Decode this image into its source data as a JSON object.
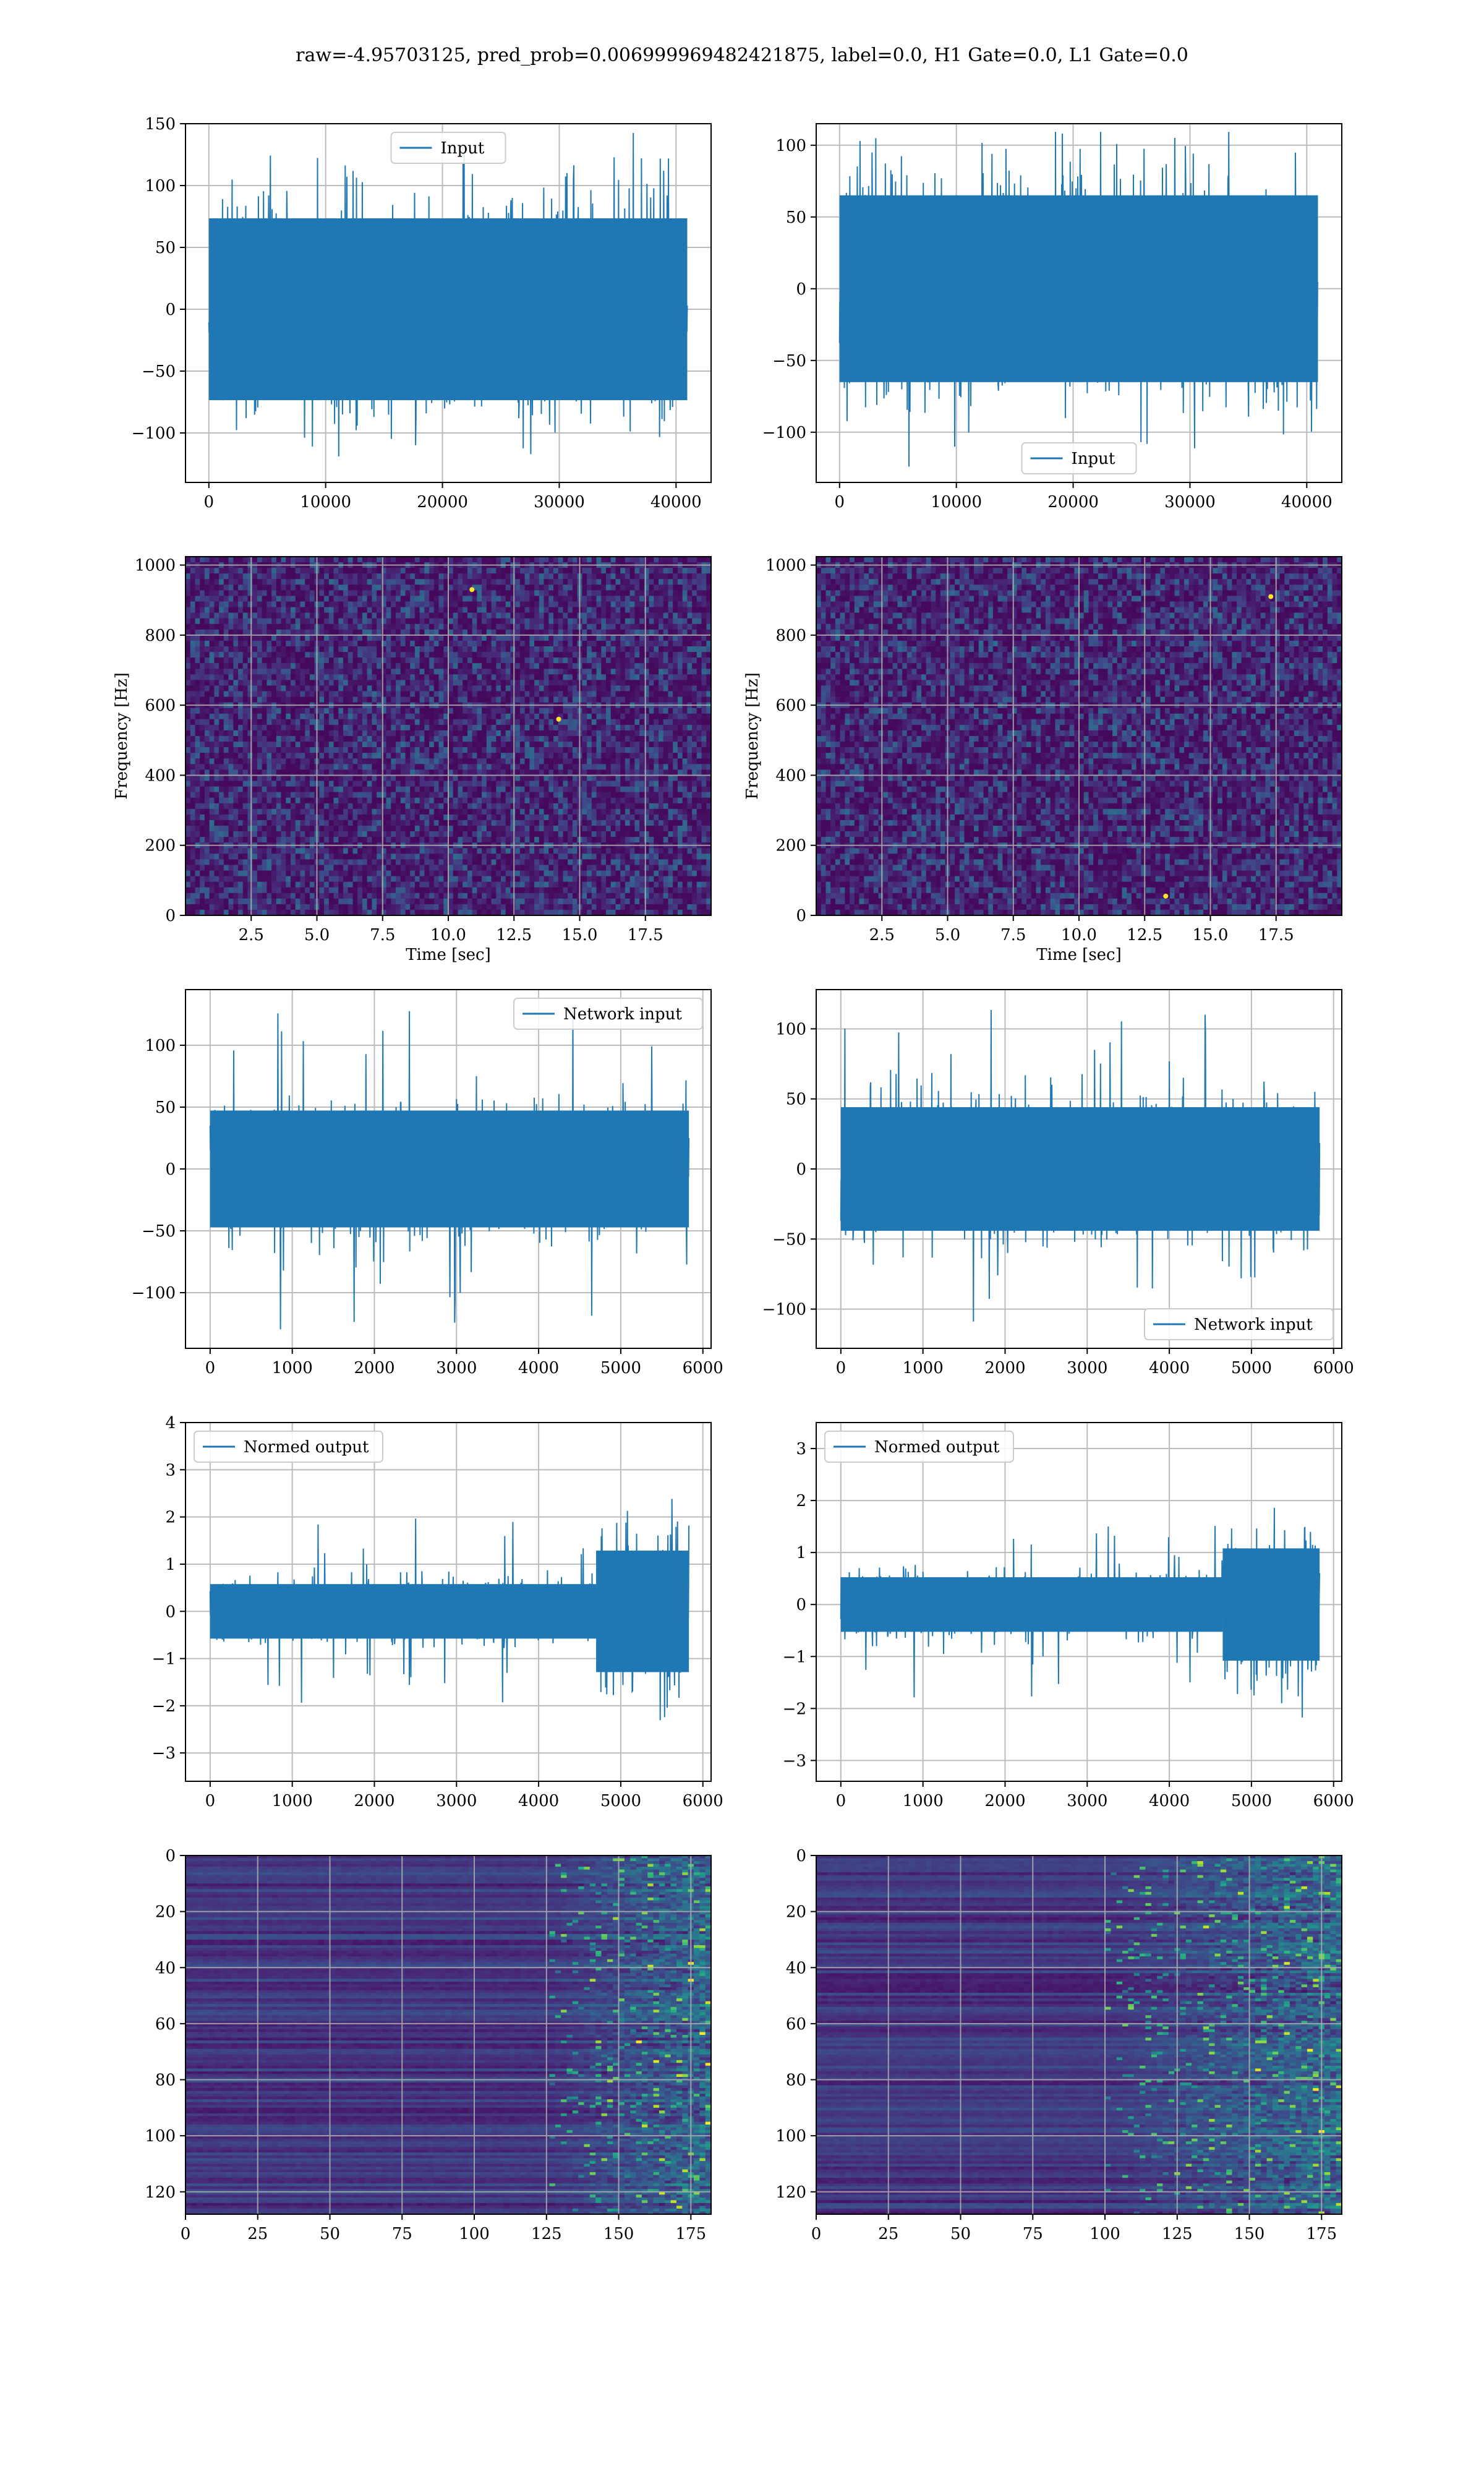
{
  "title": "raw=-4.95703125, pred_prob=0.006999969482421875, label=0.0, H1 Gate=0.0, L1 Gate=0.0",
  "colors": {
    "series": "#1f77b4",
    "grid": "#b0b0b0",
    "viridis": [
      "#440154",
      "#482878",
      "#3e4989",
      "#31688e",
      "#26828e",
      "#1f9e89",
      "#35b779",
      "#6ece58",
      "#b5de2b",
      "#fde725"
    ]
  },
  "chart_data": [
    {
      "id": "input-h1",
      "type": "line",
      "row": 0,
      "col": 0,
      "legend": "Input",
      "legend_loc": "upper center",
      "xlim": [
        -2000,
        43000
      ],
      "ylim": [
        -140,
        150
      ],
      "xticks": [
        0,
        10000,
        20000,
        30000,
        40000
      ],
      "yticks": [
        -100,
        -50,
        0,
        50,
        100,
        150
      ],
      "x_max": 40960,
      "envelope": 70,
      "peak": 125,
      "n_points": 1400,
      "seed": 11
    },
    {
      "id": "input-l1",
      "type": "line",
      "row": 0,
      "col": 1,
      "legend": "Input",
      "legend_loc": "lower center",
      "xlim": [
        -2000,
        43000
      ],
      "ylim": [
        -135,
        115
      ],
      "xticks": [
        0,
        10000,
        20000,
        30000,
        40000
      ],
      "yticks": [
        -100,
        -50,
        0,
        50,
        100
      ],
      "x_max": 40960,
      "envelope": 62,
      "peak": 115,
      "n_points": 1400,
      "seed": 23
    },
    {
      "id": "spectrogram-h1",
      "type": "heatmap",
      "row": 1,
      "col": 0,
      "xlabel": "Time [sec]",
      "ylabel": "Frequency [Hz]",
      "xlim": [
        0,
        20
      ],
      "ylim": [
        0,
        1024
      ],
      "xticks": [
        2.5,
        5.0,
        7.5,
        10.0,
        12.5,
        15.0,
        17.5
      ],
      "xtick_labels": [
        "2.5",
        "5.0",
        "7.5",
        "10.0",
        "12.5",
        "15.0",
        "17.5"
      ],
      "yticks": [
        0,
        200,
        400,
        600,
        800,
        1000
      ],
      "hot_spots": [
        [
          10.9,
          930
        ],
        [
          14.2,
          560
        ]
      ],
      "seed": 5
    },
    {
      "id": "spectrogram-l1",
      "type": "heatmap",
      "row": 1,
      "col": 1,
      "xlabel": "Time [sec]",
      "ylabel": "Frequency [Hz]",
      "xlim": [
        0,
        20
      ],
      "ylim": [
        0,
        1024
      ],
      "xticks": [
        2.5,
        5.0,
        7.5,
        10.0,
        12.5,
        15.0,
        17.5
      ],
      "xtick_labels": [
        "2.5",
        "5.0",
        "7.5",
        "10.0",
        "12.5",
        "15.0",
        "17.5"
      ],
      "yticks": [
        0,
        200,
        400,
        600,
        800,
        1000
      ],
      "hot_spots": [
        [
          17.3,
          910
        ],
        [
          13.3,
          55
        ]
      ],
      "seed": 9
    },
    {
      "id": "network-input-h1",
      "type": "line",
      "row": 2,
      "col": 0,
      "legend": "Network input",
      "legend_loc": "upper right",
      "xlim": [
        -300,
        6100
      ],
      "ylim": [
        -145,
        145
      ],
      "xticks": [
        0,
        1000,
        2000,
        3000,
        4000,
        5000,
        6000
      ],
      "yticks": [
        -100,
        -50,
        0,
        50,
        100
      ],
      "x_max": 5830,
      "envelope": 45,
      "peak": 130,
      "n_points": 1300,
      "seed": 31
    },
    {
      "id": "network-input-l1",
      "type": "line",
      "row": 2,
      "col": 1,
      "legend": "Network input",
      "legend_loc": "lower right",
      "xlim": [
        -300,
        6100
      ],
      "ylim": [
        -128,
        128
      ],
      "xticks": [
        0,
        1000,
        2000,
        3000,
        4000,
        5000,
        6000
      ],
      "yticks": [
        -100,
        -50,
        0,
        50,
        100
      ],
      "x_max": 5830,
      "envelope": 42,
      "peak": 115,
      "n_points": 1300,
      "seed": 47
    },
    {
      "id": "normed-output-h1",
      "type": "line",
      "row": 3,
      "col": 0,
      "legend": "Normed output",
      "legend_loc": "upper left",
      "xlim": [
        -300,
        6100
      ],
      "ylim": [
        -3.6,
        4.0
      ],
      "xticks": [
        0,
        1000,
        2000,
        3000,
        4000,
        5000,
        6000
      ],
      "yticks": [
        -3,
        -2,
        -1,
        0,
        1,
        2,
        3,
        4
      ],
      "x_max": 5830,
      "envelope": 0.55,
      "peak": 2.0,
      "burst_start": 4700,
      "burst_gain": 2.6,
      "n_points": 1300,
      "seed": 53
    },
    {
      "id": "normed-output-l1",
      "type": "line",
      "row": 3,
      "col": 1,
      "legend": "Normed output",
      "legend_loc": "upper left",
      "xlim": [
        -300,
        6100
      ],
      "ylim": [
        -3.4,
        3.5
      ],
      "xticks": [
        0,
        1000,
        2000,
        3000,
        4000,
        5000,
        6000
      ],
      "yticks": [
        -3,
        -2,
        -1,
        0,
        1,
        2,
        3
      ],
      "x_max": 5830,
      "envelope": 0.5,
      "peak": 1.8,
      "burst_start": 4650,
      "burst_gain": 2.4,
      "n_points": 1300,
      "seed": 67
    },
    {
      "id": "feature-map-h1",
      "type": "heatmap",
      "row": 4,
      "col": 0,
      "xlim": [
        0,
        182
      ],
      "ylim": [
        128,
        0
      ],
      "xticks": [
        0,
        25,
        50,
        75,
        100,
        125,
        150,
        175
      ],
      "yticks": [
        0,
        20,
        40,
        60,
        80,
        100,
        120
      ],
      "n_cols": 182,
      "n_rows": 128,
      "activity_start": 125,
      "seed": 71
    },
    {
      "id": "feature-map-l1",
      "type": "heatmap",
      "row": 4,
      "col": 1,
      "xlim": [
        0,
        182
      ],
      "ylim": [
        128,
        0
      ],
      "xticks": [
        0,
        25,
        50,
        75,
        100,
        125,
        150,
        175
      ],
      "yticks": [
        0,
        20,
        40,
        60,
        80,
        100,
        120
      ],
      "n_cols": 182,
      "n_rows": 128,
      "activity_start": 100,
      "seed": 83
    }
  ]
}
